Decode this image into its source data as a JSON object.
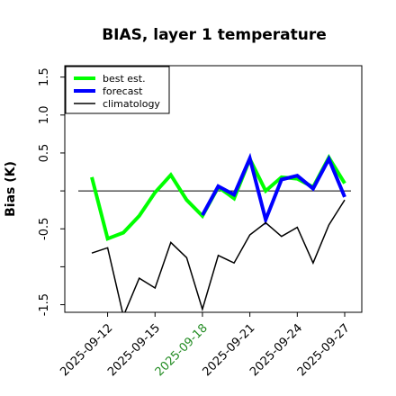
{
  "chart_data": {
    "type": "line",
    "title": "BIAS, layer 1 temperature",
    "ylabel": "Bias (K)",
    "xlabel": "",
    "ylim": [
      -1.6,
      1.65
    ],
    "yticks": [
      -1.5,
      -1.0,
      -0.5,
      0.0,
      0.5,
      1.0,
      1.5
    ],
    "ytick_labels": [
      "-1.5",
      "",
      "-0.5",
      "",
      "0.5",
      "1.0",
      "1.5"
    ],
    "x": [
      "2025-09-11",
      "2025-09-12",
      "2025-09-13",
      "2025-09-14",
      "2025-09-15",
      "2025-09-16",
      "2025-09-17",
      "2025-09-18",
      "2025-09-19",
      "2025-09-20",
      "2025-09-21",
      "2025-09-22",
      "2025-09-23",
      "2025-09-24",
      "2025-09-25",
      "2025-09-26",
      "2025-09-27"
    ],
    "xticks": [
      "2025-09-12",
      "2025-09-15",
      "2025-09-18",
      "2025-09-21",
      "2025-09-24",
      "2025-09-27"
    ],
    "highlight_tick": "2025-09-18",
    "highlight_color": "#228B22",
    "zero_line": true,
    "grid": false,
    "legend_position": "top-left",
    "series": [
      {
        "name": "best est.",
        "color": "#00ff00",
        "width": 4,
        "values": [
          0.18,
          -0.63,
          -0.55,
          -0.33,
          -0.02,
          0.21,
          -0.12,
          -0.33,
          0.05,
          -0.1,
          0.42,
          0.0,
          0.18,
          0.16,
          0.05,
          0.44,
          0.1
        ]
      },
      {
        "name": "forecast",
        "color": "#0000ff",
        "width": 4,
        "values": [
          null,
          null,
          null,
          null,
          null,
          null,
          null,
          -0.32,
          0.06,
          -0.05,
          0.43,
          -0.38,
          0.15,
          0.2,
          0.03,
          0.42,
          -0.08
        ]
      },
      {
        "name": "climatology",
        "color": "#000000",
        "width": 1.5,
        "values": [
          -0.82,
          -0.75,
          -1.65,
          -1.15,
          -1.28,
          -0.68,
          -0.88,
          -1.56,
          -0.85,
          -0.95,
          -0.58,
          -0.42,
          -0.6,
          -0.48,
          -0.95,
          -0.45,
          -0.12
        ]
      }
    ]
  }
}
